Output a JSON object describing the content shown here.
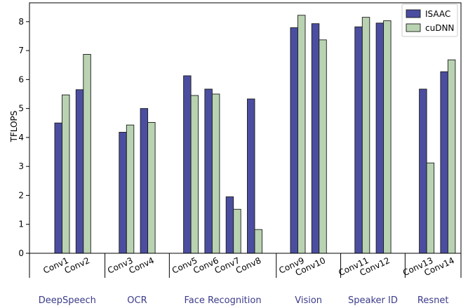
{
  "chart_data": {
    "type": "bar",
    "ylabel": "TFLOPS",
    "ylim": [
      0,
      8.65
    ],
    "yticks": [
      0,
      1,
      2,
      3,
      4,
      5,
      6,
      7,
      8
    ],
    "legend_position": "top-right",
    "categories": [
      "Conv1",
      "Conv2",
      "Conv3",
      "Conv4",
      "Conv5",
      "Conv6",
      "Conv7",
      "Conv8",
      "Conv9",
      "Conv10",
      "Conv11",
      "Conv12",
      "Conv13",
      "Conv14"
    ],
    "groups": [
      {
        "label": "DeepSpeech",
        "members": [
          "Conv1",
          "Conv2"
        ]
      },
      {
        "label": "OCR",
        "members": [
          "Conv3",
          "Conv4"
        ]
      },
      {
        "label": "Face Recognition",
        "members": [
          "Conv5",
          "Conv6",
          "Conv7",
          "Conv8"
        ]
      },
      {
        "label": "Vision",
        "members": [
          "Conv9",
          "Conv10"
        ]
      },
      {
        "label": "Speaker ID",
        "members": [
          "Conv11",
          "Conv12"
        ]
      },
      {
        "label": "Resnet",
        "members": [
          "Conv13",
          "Conv14"
        ]
      }
    ],
    "series": [
      {
        "name": "ISAAC",
        "color": "#4b4ea0",
        "values": [
          4.5,
          5.65,
          4.18,
          5.0,
          6.13,
          5.67,
          1.95,
          5.33,
          7.79,
          7.93,
          7.82,
          7.95,
          5.67,
          6.27
        ]
      },
      {
        "name": "cuDNN",
        "color": "#b9d3b2",
        "values": [
          5.47,
          6.87,
          4.43,
          4.52,
          5.45,
          5.5,
          1.52,
          0.82,
          8.22,
          7.37,
          8.15,
          8.03,
          3.12,
          6.68
        ]
      }
    ]
  }
}
